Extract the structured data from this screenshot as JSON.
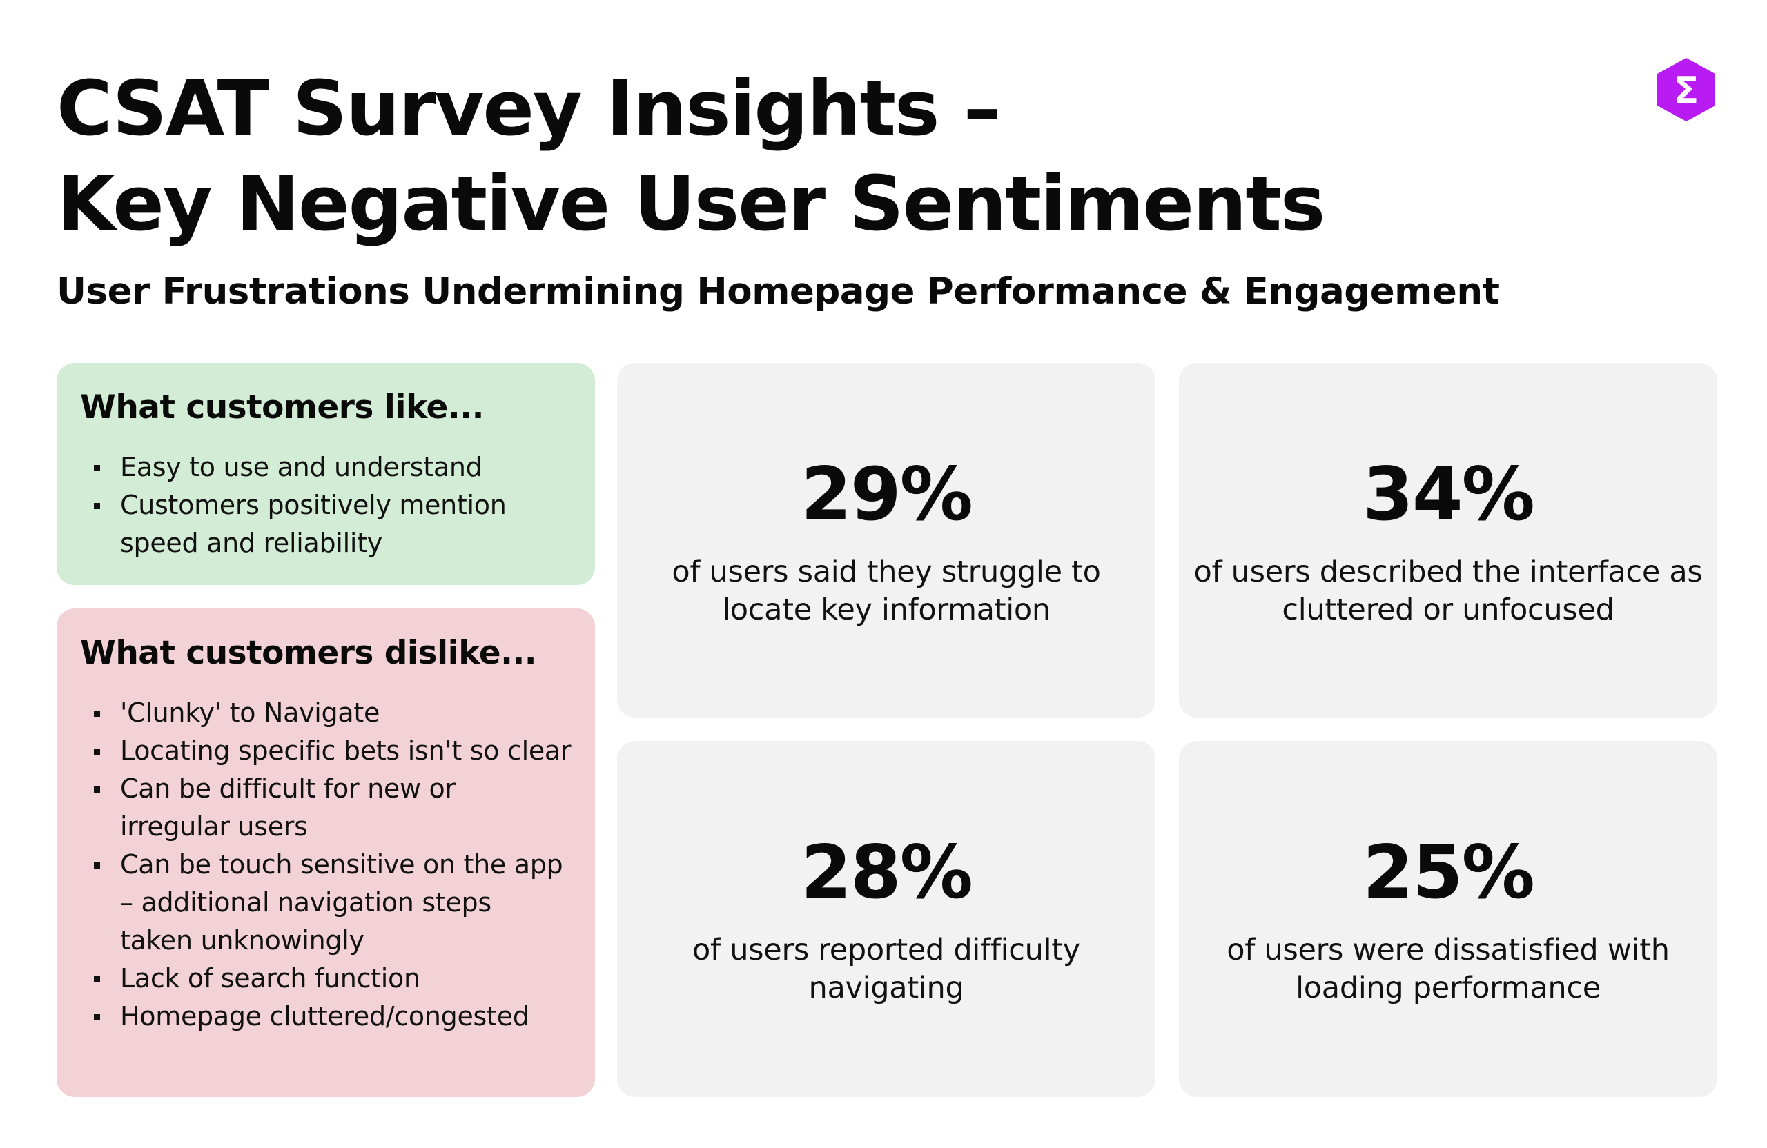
{
  "header": {
    "title_line1": "CSAT Survey Insights –",
    "title_line2": "Key Negative User Sentiments",
    "subtitle": "User Frustrations Undermining Homepage Performance & Engagement",
    "logo_icon": "sigma-hexagon-icon",
    "logo_glyph": "Σ",
    "logo_color": "#b81cf2"
  },
  "likes": {
    "heading": "What customers like...",
    "color": "#d3ecd6",
    "items": [
      "Easy to use and understand",
      "Customers positively mention speed and reliability"
    ]
  },
  "dislikes": {
    "heading": "What customers dislike...",
    "color": "#f2d2d6",
    "items": [
      "'Clunky' to Navigate",
      "Locating specific bets isn't so clear",
      "Can be difficult for new or irregular users",
      "Can be touch sensitive on the app – additional navigation steps taken unknowingly",
      "Lack of search function",
      "Homepage cluttered/congested"
    ]
  },
  "stats": [
    {
      "value": "29%",
      "description": "of users said they struggle to locate key information"
    },
    {
      "value": "34%",
      "description": "of users described the interface as cluttered or unfocused"
    },
    {
      "value": "28%",
      "description": "of users reported difficulty navigating"
    },
    {
      "value": "25%",
      "description": "of users were dissatisfied with loading performance"
    }
  ]
}
